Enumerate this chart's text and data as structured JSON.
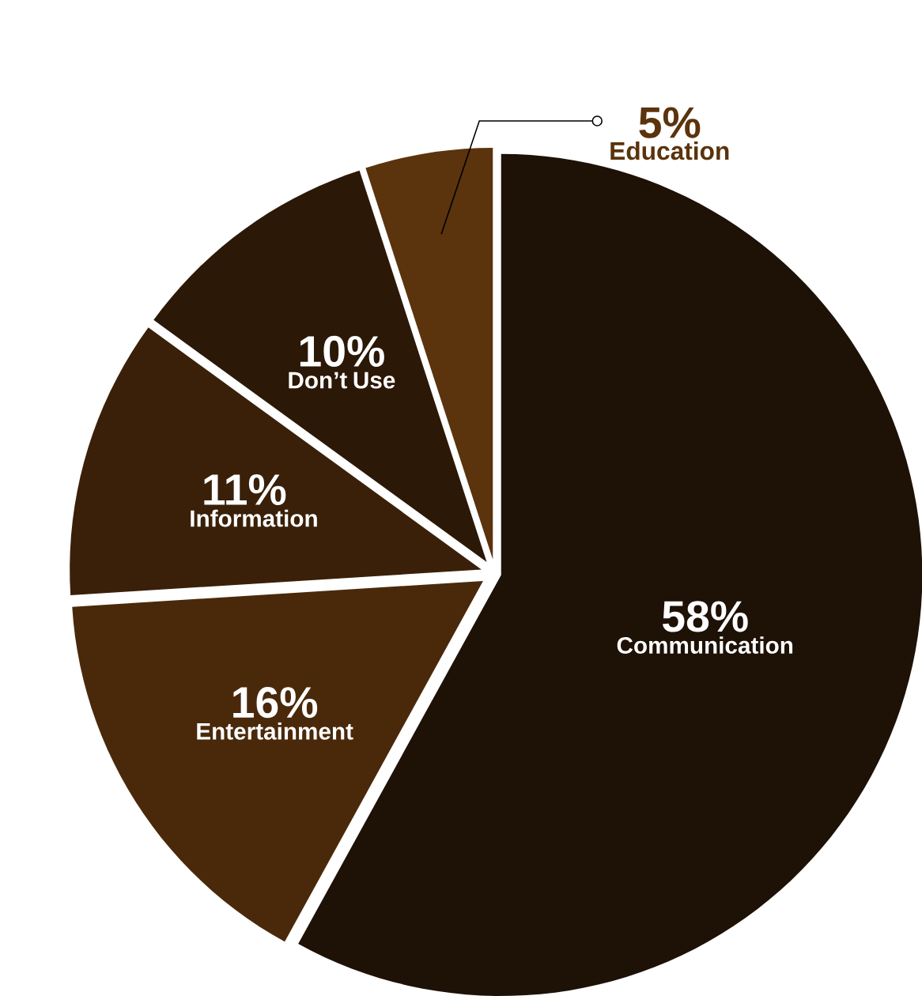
{
  "chart_data": {
    "type": "pie",
    "categories": [
      "Communication",
      "Entertainment",
      "Information",
      "Don’t Use",
      "Education"
    ],
    "values": [
      58,
      16,
      11,
      10,
      5
    ],
    "value_labels": [
      "58%",
      "16%",
      "11%",
      "10%",
      "5%"
    ],
    "colors": [
      "#1e1106",
      "#4a290b",
      "#3a2009",
      "#2c1807",
      "#5b330c"
    ]
  }
}
